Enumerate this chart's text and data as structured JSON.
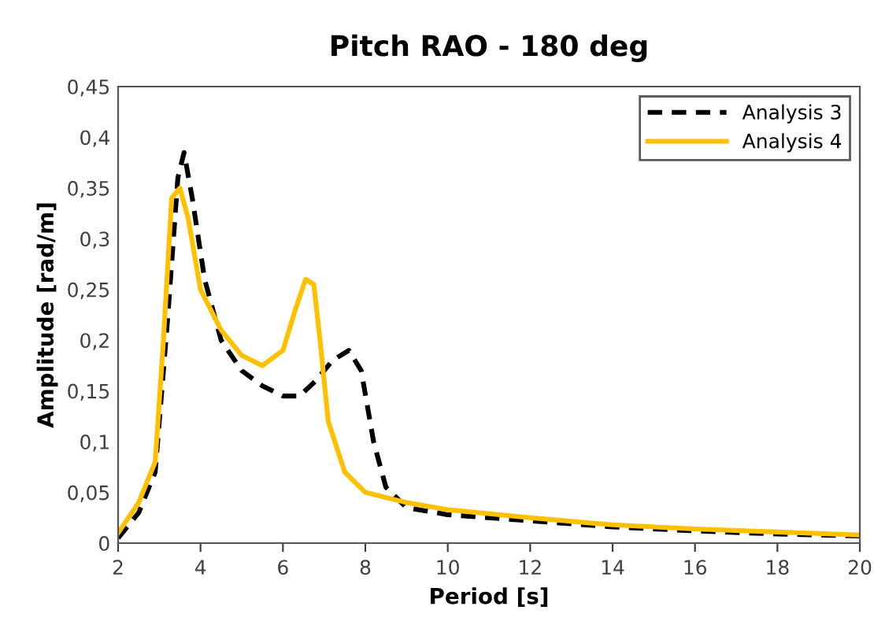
{
  "chart_data": {
    "type": "line",
    "title": "Pitch RAO - 180 deg",
    "xlabel": "Period [s]",
    "ylabel": "Amplitude [rad/m]",
    "xlim": [
      2,
      20
    ],
    "xticks": [
      2,
      4,
      6,
      8,
      10,
      12,
      14,
      16,
      18,
      20
    ],
    "ylim": [
      0,
      0.45
    ],
    "yticks": [
      {
        "value": 0,
        "label": "0"
      },
      {
        "value": 0.05,
        "label": "0,05"
      },
      {
        "value": 0.1,
        "label": "0,1"
      },
      {
        "value": 0.15,
        "label": "0,15"
      },
      {
        "value": 0.2,
        "label": "0,2"
      },
      {
        "value": 0.25,
        "label": "0,25"
      },
      {
        "value": 0.3,
        "label": "0,3"
      },
      {
        "value": 0.35,
        "label": "0,35"
      },
      {
        "value": 0.4,
        "label": "0,4"
      },
      {
        "value": 0.45,
        "label": "0,45"
      }
    ],
    "grid": false,
    "legend": "top right",
    "series": [
      {
        "name": "Analysis 3",
        "color": "#000000",
        "line_style": "dashed",
        "x": [
          2,
          2.5,
          2.9,
          3.2,
          3.45,
          3.6,
          3.8,
          4.1,
          4.5,
          5.0,
          5.5,
          6.0,
          6.4,
          6.8,
          7.2,
          7.6,
          7.9,
          8.2,
          8.5,
          9,
          10,
          12,
          14,
          16,
          18,
          20
        ],
        "values": [
          0.005,
          0.03,
          0.07,
          0.22,
          0.36,
          0.385,
          0.34,
          0.26,
          0.2,
          0.17,
          0.155,
          0.145,
          0.145,
          0.16,
          0.18,
          0.19,
          0.17,
          0.1,
          0.055,
          0.035,
          0.028,
          0.022,
          0.016,
          0.012,
          0.009,
          0.007
        ]
      },
      {
        "name": "Analysis 4",
        "color": "#ffc000",
        "line_style": "solid",
        "x": [
          2,
          2.5,
          2.9,
          3.1,
          3.3,
          3.5,
          3.7,
          4.0,
          4.5,
          5.0,
          5.5,
          6.0,
          6.3,
          6.55,
          6.75,
          6.9,
          7.1,
          7.5,
          8,
          9,
          10,
          12,
          14,
          16,
          18,
          20
        ],
        "values": [
          0.01,
          0.04,
          0.08,
          0.2,
          0.34,
          0.35,
          0.32,
          0.25,
          0.21,
          0.185,
          0.175,
          0.19,
          0.23,
          0.26,
          0.255,
          0.2,
          0.12,
          0.07,
          0.05,
          0.04,
          0.033,
          0.025,
          0.018,
          0.014,
          0.011,
          0.008
        ]
      }
    ]
  }
}
